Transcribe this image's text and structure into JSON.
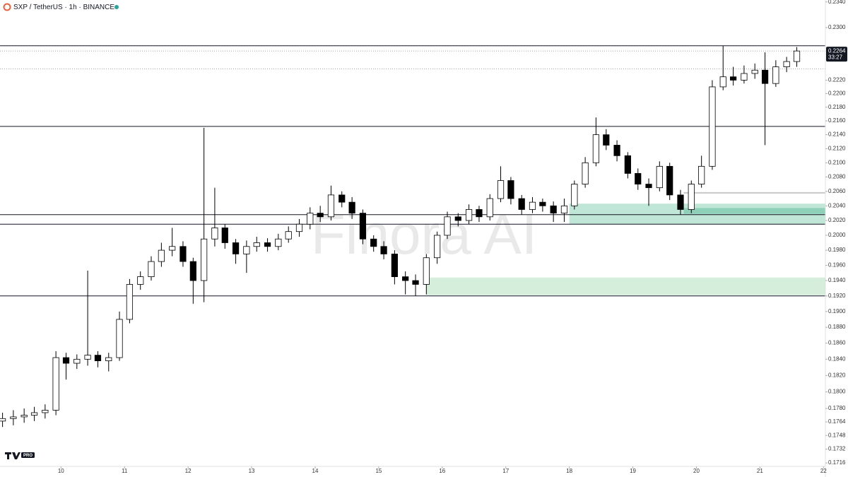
{
  "chart_data": {
    "type": "candlestick",
    "title": "SXP / TetherUS · 1h · BINANCE",
    "watermark": "Finora AI",
    "logo_badge": "PRO",
    "log_scale": true,
    "up_color": "#ffffff",
    "down_color": "#000000",
    "xlim": [
      9.04,
      22.03
    ],
    "xticks": [
      10,
      11,
      12,
      13,
      14,
      15,
      16,
      17,
      18,
      19,
      20,
      21,
      22
    ],
    "ylim": [
      0.1712,
      0.2343
    ],
    "yticks": [
      {
        "value": 0.234,
        "label": "0.2340"
      },
      {
        "value": 0.23,
        "label": "0.2300"
      },
      {
        "value": 0.222,
        "label": "0.2220"
      },
      {
        "value": 0.22,
        "label": "0.2200"
      },
      {
        "value": 0.218,
        "label": "0.2180"
      },
      {
        "value": 0.216,
        "label": "0.2160"
      },
      {
        "value": 0.214,
        "label": "0.2140"
      },
      {
        "value": 0.212,
        "label": "0.2120"
      },
      {
        "value": 0.21,
        "label": "0.2100"
      },
      {
        "value": 0.208,
        "label": "0.2080"
      },
      {
        "value": 0.206,
        "label": "0.2060"
      },
      {
        "value": 0.204,
        "label": "0.2040"
      },
      {
        "value": 0.202,
        "label": "0.2020"
      },
      {
        "value": 0.2,
        "label": "0.2000"
      },
      {
        "value": 0.198,
        "label": "0.1980"
      },
      {
        "value": 0.196,
        "label": "0.1960"
      },
      {
        "value": 0.194,
        "label": "0.1940"
      },
      {
        "value": 0.192,
        "label": "0.1920"
      },
      {
        "value": 0.19,
        "label": "0.1900"
      },
      {
        "value": 0.188,
        "label": "0.1880"
      },
      {
        "value": 0.186,
        "label": "0.1860"
      },
      {
        "value": 0.184,
        "label": "0.1840"
      },
      {
        "value": 0.182,
        "label": "0.1820"
      },
      {
        "value": 0.18,
        "label": "0.1800"
      },
      {
        "value": 0.178,
        "label": "0.1780"
      },
      0.1764,
      0.1748,
      0.1732,
      0.1716
    ],
    "last_price": 0.2264,
    "countdown": "33:27",
    "levels": [
      0.2272,
      0.2152,
      0.2028,
      0.2015,
      0.192
    ],
    "dotted_levels": [
      0.2264,
      0.2237
    ],
    "marker_level": {
      "value": 0.2058,
      "from": 19.8
    },
    "zones": [
      {
        "low": 0.2015,
        "high": 0.2043,
        "from": 18.0,
        "color": "#bfe6d6"
      },
      {
        "low": 0.2029,
        "high": 0.2037,
        "from": 19.8,
        "color": "#8fd1b8"
      },
      {
        "low": 0.1921,
        "high": 0.1944,
        "from": 15.75,
        "color": "#d5eedb"
      }
    ],
    "x": [
      9.08,
      9.25,
      9.42,
      9.58,
      9.75,
      9.92,
      10.08,
      10.25,
      10.42,
      10.58,
      10.75,
      10.92,
      11.08,
      11.25,
      11.42,
      11.58,
      11.75,
      11.92,
      12.08,
      12.25,
      12.42,
      12.58,
      12.75,
      12.92,
      13.08,
      13.25,
      13.42,
      13.58,
      13.75,
      13.92,
      14.08,
      14.25,
      14.42,
      14.58,
      14.75,
      14.92,
      15.08,
      15.25,
      15.42,
      15.58,
      15.75,
      15.92,
      16.08,
      16.25,
      16.42,
      16.58,
      16.75,
      16.92,
      17.08,
      17.25,
      17.42,
      17.58,
      17.75,
      17.92,
      18.08,
      18.25,
      18.42,
      18.58,
      18.75,
      18.92,
      19.08,
      19.25,
      19.42,
      19.58,
      19.75,
      19.92,
      20.08,
      20.25,
      20.42,
      20.58,
      20.75,
      20.92,
      21.08,
      21.25,
      21.42,
      21.58
    ],
    "open": [
      0.1765,
      0.1768,
      0.177,
      0.1772,
      0.1775,
      0.1778,
      0.1842,
      0.1835,
      0.184,
      0.1845,
      0.1838,
      0.1842,
      0.189,
      0.1935,
      0.1945,
      0.1965,
      0.198,
      0.1985,
      0.1965,
      0.194,
      0.1995,
      0.201,
      0.199,
      0.1975,
      0.1985,
      0.199,
      0.1985,
      0.1995,
      0.2005,
      0.2015,
      0.203,
      0.2025,
      0.2055,
      0.2045,
      0.203,
      0.1995,
      0.1985,
      0.1975,
      0.1945,
      0.194,
      0.1935,
      0.197,
      0.2,
      0.2025,
      0.202,
      0.2035,
      0.2025,
      0.205,
      0.2075,
      0.205,
      0.2035,
      0.2045,
      0.204,
      0.203,
      0.204,
      0.207,
      0.21,
      0.214,
      0.2125,
      0.211,
      0.2085,
      0.207,
      0.2065,
      0.2095,
      0.2055,
      0.2035,
      0.207,
      0.2095,
      0.221,
      0.2225,
      0.222,
      0.223,
      0.2235,
      0.2215,
      0.224,
      0.2248
    ],
    "high": [
      0.1775,
      0.1778,
      0.178,
      0.1782,
      0.1785,
      0.185,
      0.1848,
      0.1846,
      0.1953,
      0.185,
      0.1848,
      0.19,
      0.1942,
      0.1952,
      0.1972,
      0.199,
      0.201,
      0.1992,
      0.197,
      0.215,
      0.2065,
      0.2015,
      0.1995,
      0.1993,
      0.1998,
      0.1996,
      0.2002,
      0.2012,
      0.2022,
      0.2038,
      0.204,
      0.2068,
      0.206,
      0.2052,
      0.2035,
      0.2,
      0.1992,
      0.198,
      0.1952,
      0.1948,
      0.1975,
      0.2005,
      0.2032,
      0.203,
      0.2042,
      0.204,
      0.2056,
      0.2095,
      0.208,
      0.2055,
      0.2052,
      0.205,
      0.2046,
      0.205,
      0.2075,
      0.2108,
      0.2165,
      0.2148,
      0.2132,
      0.2115,
      0.2092,
      0.2078,
      0.2102,
      0.21,
      0.2062,
      0.2075,
      0.211,
      0.222,
      0.2272,
      0.224,
      0.2242,
      0.2245,
      0.2262,
      0.225,
      0.2255,
      0.227
    ],
    "low": [
      0.1758,
      0.176,
      0.1763,
      0.1765,
      0.1768,
      0.1772,
      0.1815,
      0.1828,
      0.1832,
      0.183,
      0.1825,
      0.1838,
      0.1885,
      0.1928,
      0.194,
      0.1958,
      0.1972,
      0.1958,
      0.191,
      0.1912,
      0.1985,
      0.1982,
      0.1962,
      0.195,
      0.1978,
      0.1978,
      0.198,
      0.199,
      0.1998,
      0.2008,
      0.2018,
      0.202,
      0.2038,
      0.2022,
      0.1988,
      0.1978,
      0.1968,
      0.1935,
      0.1922,
      0.192,
      0.1922,
      0.1962,
      0.1995,
      0.2012,
      0.2015,
      0.2018,
      0.202,
      0.2045,
      0.2042,
      0.2028,
      0.203,
      0.2032,
      0.2018,
      0.2018,
      0.2035,
      0.2065,
      0.2095,
      0.2118,
      0.2102,
      0.2078,
      0.2062,
      0.204,
      0.206,
      0.2048,
      0.2028,
      0.203,
      0.2065,
      0.209,
      0.2205,
      0.2212,
      0.2215,
      0.2222,
      0.2125,
      0.221,
      0.2232,
      0.224
    ],
    "close": [
      0.1768,
      0.177,
      0.1772,
      0.1775,
      0.1778,
      0.1842,
      0.1835,
      0.184,
      0.1845,
      0.1838,
      0.1842,
      0.189,
      0.1935,
      0.1945,
      0.1965,
      0.198,
      0.1985,
      0.1965,
      0.194,
      0.1995,
      0.201,
      0.199,
      0.1975,
      0.1985,
      0.199,
      0.1985,
      0.1995,
      0.2005,
      0.2015,
      0.203,
      0.2025,
      0.2055,
      0.2045,
      0.203,
      0.1995,
      0.1985,
      0.1975,
      0.1945,
      0.194,
      0.1935,
      0.197,
      0.2,
      0.2025,
      0.202,
      0.2035,
      0.2025,
      0.205,
      0.2075,
      0.205,
      0.2035,
      0.2045,
      0.204,
      0.203,
      0.204,
      0.207,
      0.21,
      0.214,
      0.2125,
      0.211,
      0.2085,
      0.207,
      0.2065,
      0.2095,
      0.2055,
      0.2035,
      0.207,
      0.2095,
      0.221,
      0.2225,
      0.222,
      0.223,
      0.2235,
      0.2215,
      0.224,
      0.2248,
      0.2264
    ]
  }
}
